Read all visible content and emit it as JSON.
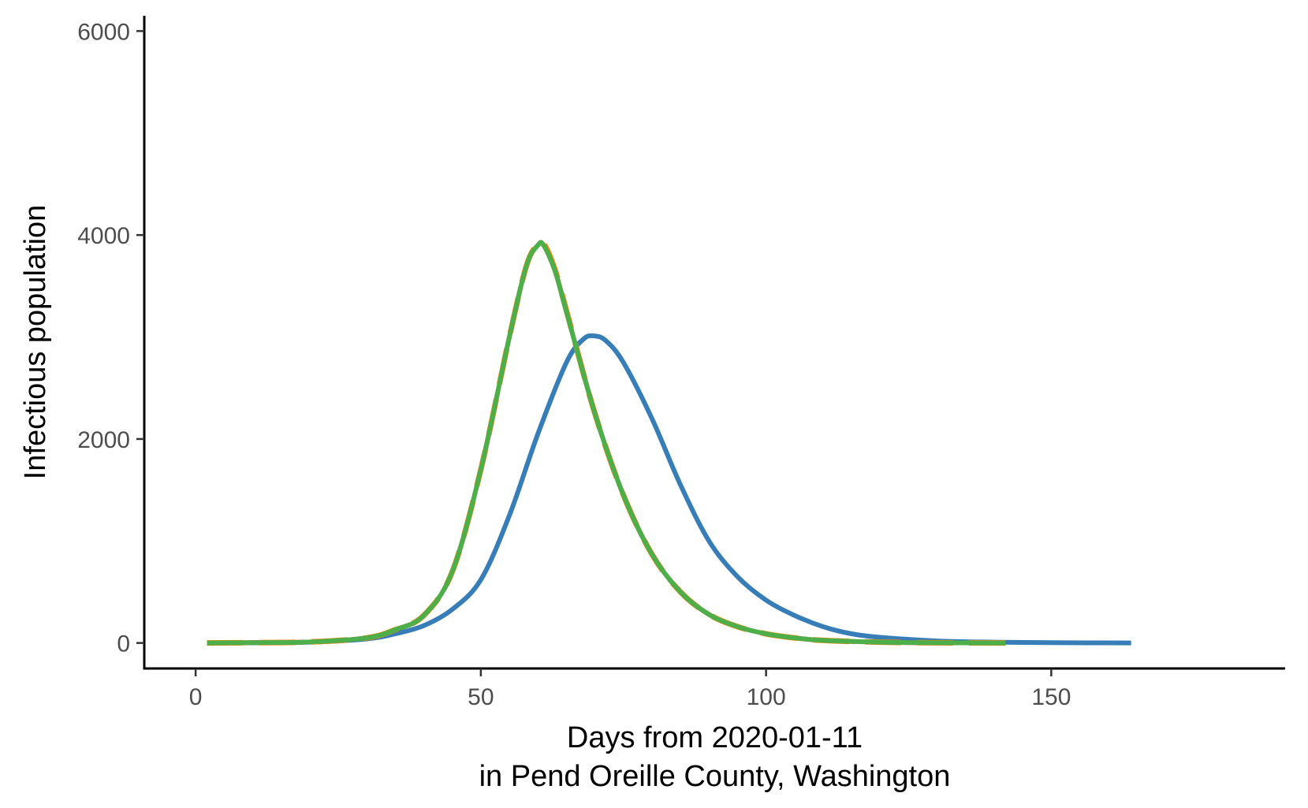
{
  "chart_data": {
    "type": "line",
    "title": "",
    "xlabel_lines": [
      "Days from 2020-01-11",
      "in Pend Oreille County, Washington"
    ],
    "ylabel": "Infectious population",
    "xlim": [
      -9,
      191
    ],
    "ylim": [
      -250,
      6150
    ],
    "x_ticks": [
      0,
      50,
      100,
      150
    ],
    "y_ticks": [
      0,
      2000,
      4000,
      6000
    ],
    "grid": false,
    "legend": "none",
    "series": [
      {
        "color": "#377EB8",
        "style": "solid",
        "x": [
          2,
          10,
          20,
          30,
          35,
          40,
          45,
          50,
          55,
          60,
          65,
          68,
          70,
          72,
          75,
          80,
          85,
          90,
          95,
          100,
          105,
          110,
          115,
          120,
          130,
          140,
          150,
          164
        ],
        "y": [
          0,
          2,
          8,
          40,
          90,
          170,
          330,
          620,
          1250,
          2050,
          2750,
          2980,
          3010,
          2960,
          2750,
          2200,
          1550,
          1000,
          650,
          420,
          270,
          160,
          90,
          55,
          20,
          8,
          3,
          0
        ]
      },
      {
        "color": "#E41A1C",
        "style": "dashed",
        "x": [
          2,
          10,
          20,
          30,
          35,
          40,
          45,
          50,
          55,
          58,
          60,
          61,
          63,
          65,
          70,
          75,
          80,
          85,
          90,
          95,
          100,
          105,
          110,
          120,
          130,
          142
        ],
        "y": [
          0,
          3,
          10,
          50,
          130,
          270,
          700,
          1700,
          3000,
          3700,
          3900,
          3900,
          3650,
          3250,
          2250,
          1450,
          870,
          500,
          280,
          160,
          90,
          50,
          25,
          8,
          2,
          0
        ]
      },
      {
        "color": "#FF7F00",
        "style": "longdash",
        "x": [
          2,
          10,
          20,
          30,
          35,
          40,
          45,
          50,
          55,
          58,
          60,
          61,
          63,
          65,
          70,
          75,
          80,
          85,
          90,
          95,
          100,
          105,
          110,
          120,
          130,
          142
        ],
        "y": [
          0,
          3,
          10,
          50,
          130,
          270,
          700,
          1700,
          3000,
          3700,
          3910,
          3920,
          3660,
          3260,
          2250,
          1450,
          870,
          500,
          280,
          160,
          90,
          50,
          25,
          8,
          2,
          0
        ]
      },
      {
        "color": "#4DAF4A",
        "style": "solid",
        "x": [
          2,
          10,
          20,
          30,
          35,
          40,
          45,
          50,
          55,
          58,
          60,
          61,
          63,
          65,
          70,
          75,
          80,
          85,
          90,
          95,
          100,
          105,
          110,
          120,
          130,
          142
        ],
        "y": [
          0,
          3,
          10,
          50,
          130,
          270,
          700,
          1700,
          3000,
          3700,
          3900,
          3900,
          3650,
          3250,
          2250,
          1450,
          870,
          500,
          280,
          160,
          90,
          50,
          25,
          8,
          2,
          0
        ]
      }
    ]
  }
}
